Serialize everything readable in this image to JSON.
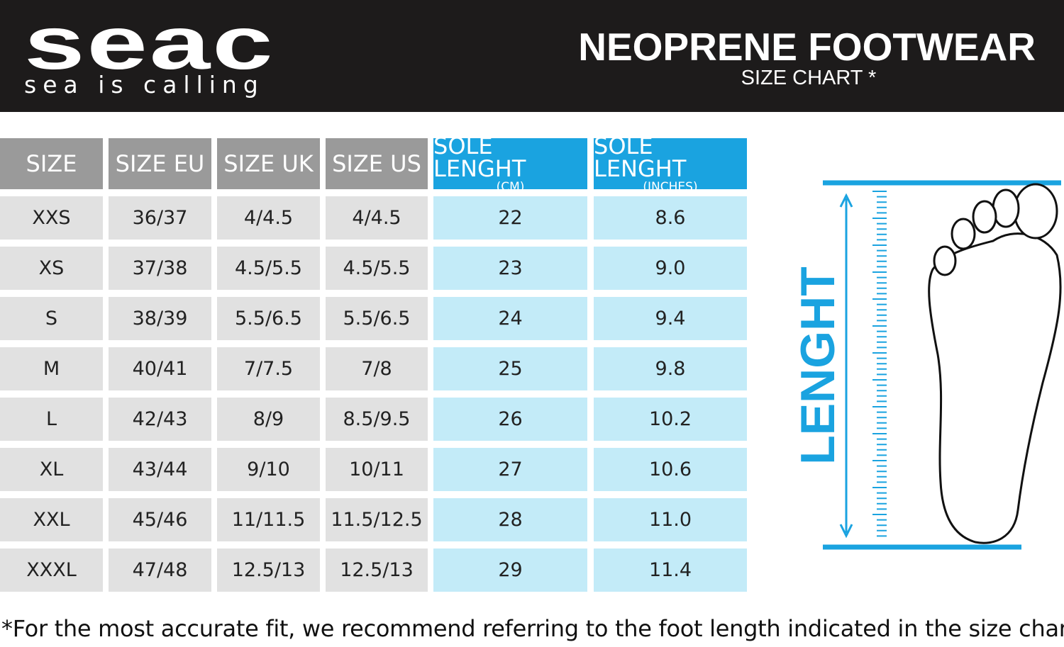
{
  "header": {
    "logo": "seac",
    "tagline": "sea is calling",
    "title": "NEOPRENE FOOTWEAR",
    "subtitle": "SIZE CHART *"
  },
  "table": {
    "header": [
      {
        "label": "SIZE"
      },
      {
        "label": "SIZE EU"
      },
      {
        "label": "SIZE UK"
      },
      {
        "label": "SIZE US"
      },
      {
        "label": "SOLE LENGHT",
        "sub": "(CM)"
      },
      {
        "label": "SOLE LENGHT",
        "sub": "(INCHES)"
      }
    ],
    "rows": [
      [
        "XXS",
        "36/37",
        "4/4.5",
        "4/4.5",
        "22",
        "8.6"
      ],
      [
        "XS",
        "37/38",
        "4.5/5.5",
        "4.5/5.5",
        "23",
        "9.0"
      ],
      [
        "S",
        "38/39",
        "5.5/6.5",
        "5.5/6.5",
        "24",
        "9.4"
      ],
      [
        "M",
        "40/41",
        "7/7.5",
        "7/8",
        "25",
        "9.8"
      ],
      [
        "L",
        "42/43",
        "8/9",
        "8.5/9.5",
        "26",
        "10.2"
      ],
      [
        "XL",
        "43/44",
        "9/10",
        "10/11",
        "27",
        "10.6"
      ],
      [
        "XXL",
        "45/46",
        "11/11.5",
        "11.5/12.5",
        "28",
        "11.0"
      ],
      [
        "XXXL",
        "47/48",
        "12.5/13",
        "12.5/13",
        "29",
        "11.4"
      ]
    ]
  },
  "diagram": {
    "label": "LENGHT"
  },
  "footnote": "*For the most accurate fit, we recommend referring to the foot length indicated in the size chart."
}
